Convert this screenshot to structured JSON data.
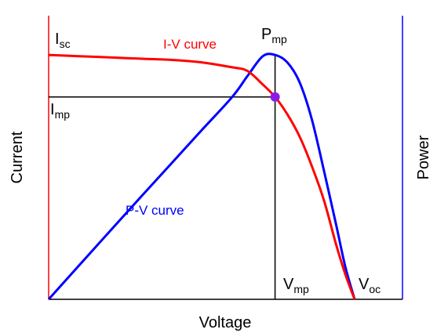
{
  "chart_data": {
    "type": "line",
    "title": "",
    "xlabel": "Voltage",
    "ylabel_left": "Current",
    "ylabel_right": "Power",
    "x_range": [
      0,
      1
    ],
    "y_range": [
      0,
      1
    ],
    "grid": false,
    "series": [
      {
        "name": "I-V curve",
        "axis": "left",
        "color": "#ff0000",
        "x": [
          0,
          0.1,
          0.2,
          0.3,
          0.4,
          0.5,
          0.6,
          0.65,
          0.7,
          0.74,
          0.78,
          0.82,
          0.86,
          0.9,
          0.94,
          0.97,
          1.0
        ],
        "y": [
          0.99,
          0.985,
          0.98,
          0.975,
          0.97,
          0.96,
          0.94,
          0.925,
          0.87,
          0.82,
          0.75,
          0.66,
          0.54,
          0.4,
          0.22,
          0.1,
          0.0
        ]
      },
      {
        "name": "P-V curve",
        "axis": "right",
        "color": "#0000ff",
        "x": [
          0,
          0.1,
          0.2,
          0.3,
          0.4,
          0.5,
          0.6,
          0.65,
          0.7,
          0.74,
          0.78,
          0.82,
          0.86,
          0.9,
          0.94,
          0.97,
          1.0
        ],
        "y": [
          0.0,
          0.138,
          0.276,
          0.413,
          0.549,
          0.685,
          0.82,
          0.905,
          0.985,
          0.99,
          0.96,
          0.88,
          0.73,
          0.52,
          0.3,
          0.13,
          0.0
        ]
      }
    ],
    "annotations": {
      "isc": {
        "base": "I",
        "sub": "sc"
      },
      "imp": {
        "base": "I",
        "sub": "mp"
      },
      "pmp": {
        "base": "P",
        "sub": "mp"
      },
      "vmp": {
        "base": "V",
        "sub": "mp"
      },
      "voc": {
        "base": "V",
        "sub": "oc"
      },
      "iv_label": "I-V curve",
      "pv_label": "P-V curve"
    },
    "mpp": {
      "x": 0.74,
      "y_current": 0.82,
      "y_power": 0.99,
      "color": "#8b1ae8"
    }
  }
}
